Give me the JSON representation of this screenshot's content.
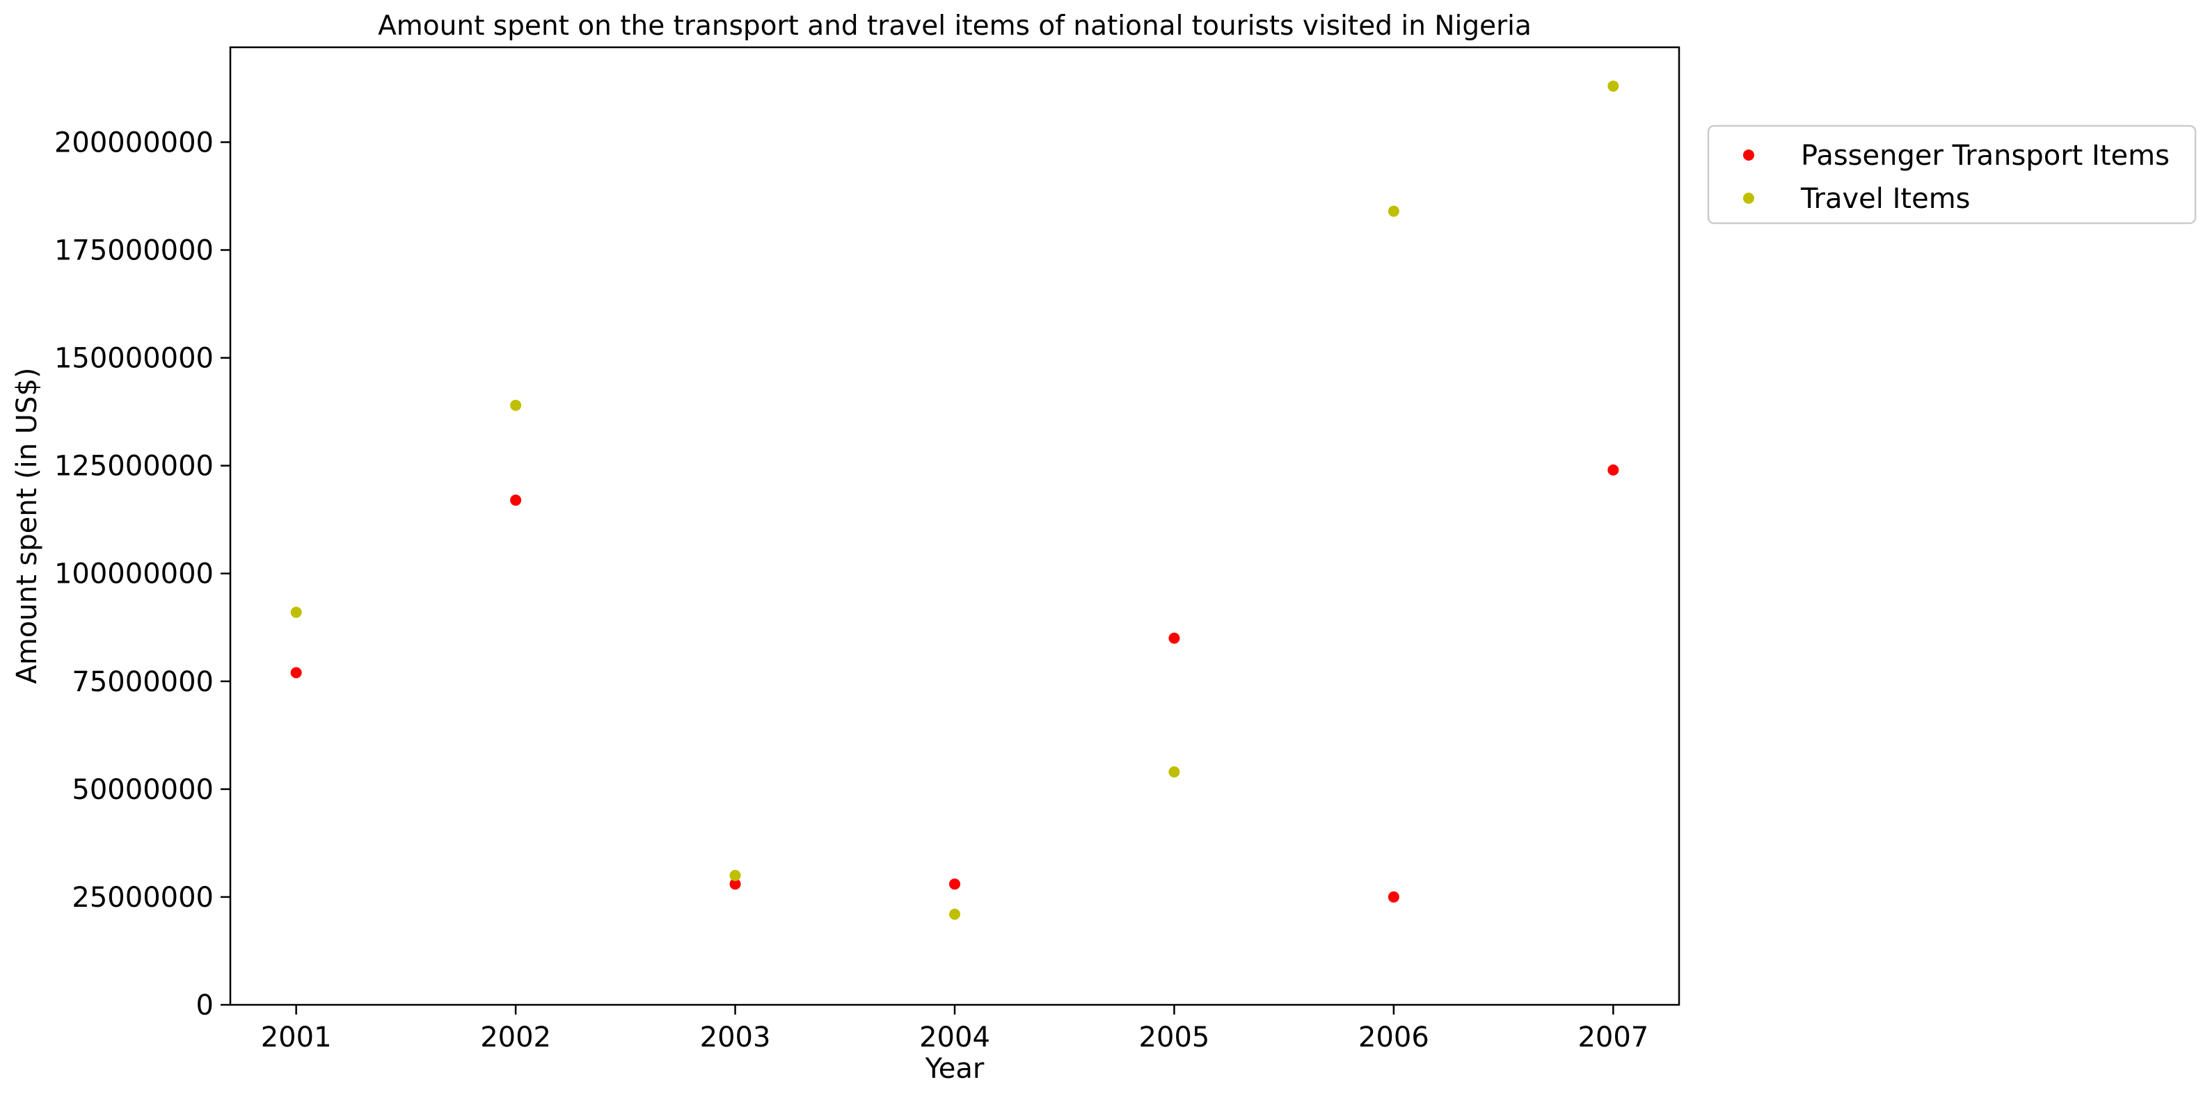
{
  "chart_data": {
    "type": "scatter",
    "title": "Amount spent on the transport and travel items of national tourists visited in Nigeria",
    "xlabel": "Year",
    "ylabel": "Amount spent (in US$)",
    "x": [
      2001,
      2002,
      2003,
      2004,
      2005,
      2006,
      2007
    ],
    "x_ticks": [
      "2001",
      "2002",
      "2003",
      "2004",
      "2005",
      "2006",
      "2007"
    ],
    "y_ticks": [
      "0",
      "25000000",
      "50000000",
      "75000000",
      "100000000",
      "125000000",
      "150000000",
      "175000000",
      "200000000"
    ],
    "xlim": [
      2000.7,
      2007.3
    ],
    "ylim": [
      0,
      222000000
    ],
    "grid": false,
    "legend_position": "outside-top-right",
    "series": [
      {
        "name": "Passenger Transport Items",
        "color": "#ff0000",
        "values": [
          77000000,
          117000000,
          28000000,
          28000000,
          85000000,
          25000000,
          124000000
        ]
      },
      {
        "name": "Travel Items",
        "color": "#bfbf00",
        "values": [
          91000000,
          139000000,
          30000000,
          21000000,
          54000000,
          184000000,
          213000000
        ]
      }
    ]
  }
}
